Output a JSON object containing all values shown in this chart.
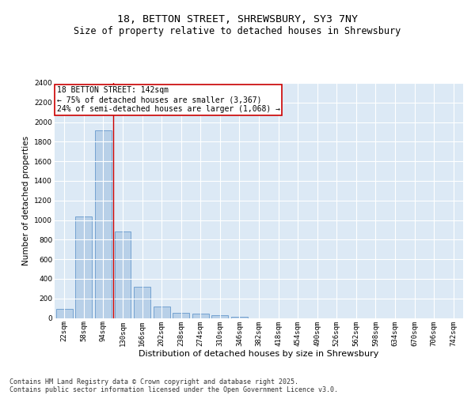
{
  "title_line1": "18, BETTON STREET, SHREWSBURY, SY3 7NY",
  "title_line2": "Size of property relative to detached houses in Shrewsbury",
  "xlabel": "Distribution of detached houses by size in Shrewsbury",
  "ylabel": "Number of detached properties",
  "bar_color": "#b8d0e8",
  "bar_edge_color": "#6699cc",
  "bg_color": "#dce9f5",
  "grid_color": "#ffffff",
  "categories": [
    "22sqm",
    "58sqm",
    "94sqm",
    "130sqm",
    "166sqm",
    "202sqm",
    "238sqm",
    "274sqm",
    "310sqm",
    "346sqm",
    "382sqm",
    "418sqm",
    "454sqm",
    "490sqm",
    "526sqm",
    "562sqm",
    "598sqm",
    "634sqm",
    "670sqm",
    "706sqm",
    "742sqm"
  ],
  "values": [
    90,
    1035,
    1920,
    880,
    315,
    120,
    55,
    45,
    30,
    15,
    0,
    0,
    0,
    0,
    0,
    0,
    0,
    0,
    0,
    0,
    0
  ],
  "ylim": [
    0,
    2400
  ],
  "yticks": [
    0,
    200,
    400,
    600,
    800,
    1000,
    1200,
    1400,
    1600,
    1800,
    2000,
    2200,
    2400
  ],
  "vline_color": "#cc0000",
  "vline_x": 2.5,
  "annotation_text": "18 BETTON STREET: 142sqm\n← 75% of detached houses are smaller (3,367)\n24% of semi-detached houses are larger (1,068) →",
  "annotation_box_color": "#cc0000",
  "footer_line1": "Contains HM Land Registry data © Crown copyright and database right 2025.",
  "footer_line2": "Contains public sector information licensed under the Open Government Licence v3.0.",
  "title_fontsize": 9.5,
  "subtitle_fontsize": 8.5,
  "tick_fontsize": 6.5,
  "ylabel_fontsize": 7.5,
  "xlabel_fontsize": 8,
  "annotation_fontsize": 7,
  "footer_fontsize": 6
}
